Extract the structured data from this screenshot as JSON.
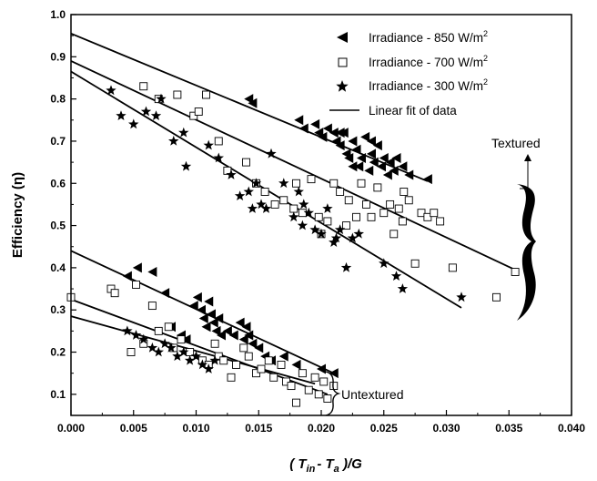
{
  "chart_data": {
    "type": "scatter",
    "xlabel": "( T_in - T_a )/G",
    "xlabel_parts": {
      "open": "( ",
      "t1": "T",
      "s1": "in",
      "dash": "- ",
      "t2": "T",
      "s2": "a",
      "close": " )/G"
    },
    "ylabel": "Efficiency (η)",
    "xlim": [
      0.0,
      0.04
    ],
    "ylim": [
      0.05,
      1.0
    ],
    "x_ticks": [
      0.0,
      0.005,
      0.01,
      0.015,
      0.02,
      0.025,
      0.03,
      0.035,
      0.04
    ],
    "x_tick_labels": [
      "0.000",
      "0.005",
      "0.010",
      "0.015",
      "0.020",
      "0.025",
      "0.030",
      "0.035",
      "0.040"
    ],
    "y_ticks": [
      0.1,
      0.2,
      0.3,
      0.4,
      0.5,
      0.6,
      0.7,
      0.8,
      0.9,
      1.0
    ],
    "y_tick_labels": [
      "0.1",
      "0.2",
      "0.3",
      "0.4",
      "0.5",
      "0.6",
      "0.7",
      "0.8",
      "0.9",
      "1.0"
    ],
    "legend_position": "top-right",
    "legend": [
      {
        "marker": "triangle-left",
        "label": "Irradiance - 850 W/m",
        "sup": "2"
      },
      {
        "marker": "square-open",
        "label": "Irradiance - 700 W/m",
        "sup": "2"
      },
      {
        "marker": "star",
        "label": "Irradiance - 300 W/m",
        "sup": "2"
      },
      {
        "marker": "line",
        "label": "Linear fit of data",
        "sup": ""
      }
    ],
    "annotations": {
      "textured": "Textured",
      "untextured": "Untextured"
    },
    "series": [
      {
        "name": "Irradiance - 850 W/m2 (Textured)",
        "marker": "triangle-left",
        "points": [
          [
            0.0142,
            0.8
          ],
          [
            0.0145,
            0.79
          ],
          [
            0.0182,
            0.75
          ],
          [
            0.0186,
            0.73
          ],
          [
            0.0195,
            0.74
          ],
          [
            0.0198,
            0.72
          ],
          [
            0.0201,
            0.71
          ],
          [
            0.0205,
            0.73
          ],
          [
            0.021,
            0.72
          ],
          [
            0.0212,
            0.7
          ],
          [
            0.0215,
            0.69
          ],
          [
            0.0218,
            0.72
          ],
          [
            0.022,
            0.67
          ],
          [
            0.0222,
            0.66
          ],
          [
            0.0225,
            0.7
          ],
          [
            0.0228,
            0.68
          ],
          [
            0.023,
            0.64
          ],
          [
            0.0232,
            0.66
          ],
          [
            0.0235,
            0.71
          ],
          [
            0.0238,
            0.63
          ],
          [
            0.024,
            0.67
          ],
          [
            0.0242,
            0.65
          ],
          [
            0.0245,
            0.69
          ],
          [
            0.0248,
            0.64
          ],
          [
            0.025,
            0.66
          ],
          [
            0.0253,
            0.62
          ],
          [
            0.0255,
            0.65
          ],
          [
            0.0258,
            0.63
          ],
          [
            0.026,
            0.66
          ],
          [
            0.0265,
            0.64
          ],
          [
            0.027,
            0.62
          ],
          [
            0.0285,
            0.61
          ],
          [
            0.0215,
            0.72
          ],
          [
            0.0225,
            0.64
          ],
          [
            0.024,
            0.7
          ]
        ]
      },
      {
        "name": "Irradiance - 700 W/m2 (Textured)",
        "marker": "square-open",
        "points": [
          [
            0.0058,
            0.83
          ],
          [
            0.007,
            0.8
          ],
          [
            0.0085,
            0.81
          ],
          [
            0.0098,
            0.76
          ],
          [
            0.0102,
            0.77
          ],
          [
            0.0108,
            0.81
          ],
          [
            0.0118,
            0.7
          ],
          [
            0.0125,
            0.63
          ],
          [
            0.014,
            0.65
          ],
          [
            0.0148,
            0.6
          ],
          [
            0.0155,
            0.58
          ],
          [
            0.0163,
            0.55
          ],
          [
            0.017,
            0.56
          ],
          [
            0.0178,
            0.54
          ],
          [
            0.0185,
            0.53
          ],
          [
            0.0192,
            0.61
          ],
          [
            0.0198,
            0.52
          ],
          [
            0.0205,
            0.51
          ],
          [
            0.021,
            0.6
          ],
          [
            0.0215,
            0.58
          ],
          [
            0.0222,
            0.56
          ],
          [
            0.0228,
            0.52
          ],
          [
            0.0232,
            0.6
          ],
          [
            0.0236,
            0.55
          ],
          [
            0.024,
            0.52
          ],
          [
            0.0245,
            0.59
          ],
          [
            0.025,
            0.53
          ],
          [
            0.0255,
            0.55
          ],
          [
            0.0258,
            0.48
          ],
          [
            0.0262,
            0.54
          ],
          [
            0.0266,
            0.58
          ],
          [
            0.027,
            0.56
          ],
          [
            0.0275,
            0.41
          ],
          [
            0.028,
            0.53
          ],
          [
            0.0285,
            0.52
          ],
          [
            0.029,
            0.53
          ],
          [
            0.0295,
            0.51
          ],
          [
            0.0305,
            0.4
          ],
          [
            0.034,
            0.33
          ],
          [
            0.0355,
            0.39
          ],
          [
            0.018,
            0.6
          ],
          [
            0.02,
            0.48
          ],
          [
            0.022,
            0.5
          ],
          [
            0.0265,
            0.51
          ]
        ]
      },
      {
        "name": "Irradiance - 300 W/m2 (Textured)",
        "marker": "star",
        "points": [
          [
            0.0032,
            0.82
          ],
          [
            0.004,
            0.76
          ],
          [
            0.005,
            0.74
          ],
          [
            0.006,
            0.77
          ],
          [
            0.0068,
            0.76
          ],
          [
            0.0072,
            0.8
          ],
          [
            0.0082,
            0.7
          ],
          [
            0.009,
            0.72
          ],
          [
            0.0092,
            0.64
          ],
          [
            0.011,
            0.69
          ],
          [
            0.0118,
            0.66
          ],
          [
            0.0128,
            0.62
          ],
          [
            0.0135,
            0.57
          ],
          [
            0.0142,
            0.58
          ],
          [
            0.0148,
            0.6
          ],
          [
            0.0152,
            0.55
          ],
          [
            0.0156,
            0.54
          ],
          [
            0.016,
            0.67
          ],
          [
            0.017,
            0.6
          ],
          [
            0.0178,
            0.52
          ],
          [
            0.0182,
            0.58
          ],
          [
            0.0186,
            0.55
          ],
          [
            0.019,
            0.53
          ],
          [
            0.0195,
            0.49
          ],
          [
            0.02,
            0.48
          ],
          [
            0.0205,
            0.54
          ],
          [
            0.021,
            0.46
          ],
          [
            0.0215,
            0.49
          ],
          [
            0.022,
            0.4
          ],
          [
            0.0225,
            0.47
          ],
          [
            0.023,
            0.48
          ],
          [
            0.025,
            0.41
          ],
          [
            0.026,
            0.38
          ],
          [
            0.0265,
            0.35
          ],
          [
            0.0312,
            0.33
          ],
          [
            0.0145,
            0.54
          ],
          [
            0.0185,
            0.5
          ],
          [
            0.0212,
            0.47
          ]
        ]
      },
      {
        "name": "Irradiance - 850 W/m2 (Untextured)",
        "marker": "triangle-left",
        "points": [
          [
            0.0045,
            0.38
          ],
          [
            0.0053,
            0.4
          ],
          [
            0.0065,
            0.39
          ],
          [
            0.0075,
            0.34
          ],
          [
            0.008,
            0.26
          ],
          [
            0.0088,
            0.24
          ],
          [
            0.0092,
            0.23
          ],
          [
            0.0098,
            0.31
          ],
          [
            0.0101,
            0.33
          ],
          [
            0.0104,
            0.3
          ],
          [
            0.0106,
            0.28
          ],
          [
            0.0108,
            0.26
          ],
          [
            0.011,
            0.32
          ],
          [
            0.0112,
            0.29
          ],
          [
            0.0114,
            0.27
          ],
          [
            0.0116,
            0.25
          ],
          [
            0.0118,
            0.28
          ],
          [
            0.012,
            0.24
          ],
          [
            0.0125,
            0.25
          ],
          [
            0.013,
            0.24
          ],
          [
            0.0135,
            0.27
          ],
          [
            0.0138,
            0.23
          ],
          [
            0.014,
            0.26
          ],
          [
            0.0142,
            0.24
          ],
          [
            0.0145,
            0.22
          ],
          [
            0.015,
            0.21
          ],
          [
            0.0155,
            0.19
          ],
          [
            0.016,
            0.18
          ],
          [
            0.017,
            0.19
          ],
          [
            0.018,
            0.17
          ],
          [
            0.02,
            0.16
          ],
          [
            0.021,
            0.15
          ]
        ]
      },
      {
        "name": "Irradiance - 700 W/m2 (Untextured)",
        "marker": "square-open",
        "points": [
          [
            0.0,
            0.33
          ],
          [
            0.0032,
            0.35
          ],
          [
            0.0035,
            0.34
          ],
          [
            0.0048,
            0.2
          ],
          [
            0.0052,
            0.36
          ],
          [
            0.0058,
            0.22
          ],
          [
            0.0065,
            0.31
          ],
          [
            0.007,
            0.25
          ],
          [
            0.0078,
            0.26
          ],
          [
            0.0082,
            0.21
          ],
          [
            0.0088,
            0.23
          ],
          [
            0.0095,
            0.2
          ],
          [
            0.0105,
            0.18
          ],
          [
            0.011,
            0.17
          ],
          [
            0.0115,
            0.22
          ],
          [
            0.0118,
            0.19
          ],
          [
            0.0122,
            0.18
          ],
          [
            0.0128,
            0.14
          ],
          [
            0.0132,
            0.17
          ],
          [
            0.0138,
            0.21
          ],
          [
            0.0142,
            0.19
          ],
          [
            0.0148,
            0.15
          ],
          [
            0.0152,
            0.16
          ],
          [
            0.0158,
            0.18
          ],
          [
            0.0162,
            0.14
          ],
          [
            0.0168,
            0.17
          ],
          [
            0.0172,
            0.13
          ],
          [
            0.0176,
            0.12
          ],
          [
            0.018,
            0.08
          ],
          [
            0.0185,
            0.15
          ],
          [
            0.019,
            0.11
          ],
          [
            0.0195,
            0.14
          ],
          [
            0.0198,
            0.1
          ],
          [
            0.0202,
            0.13
          ],
          [
            0.0205,
            0.09
          ],
          [
            0.021,
            0.12
          ]
        ]
      },
      {
        "name": "Irradiance - 300 W/m2 (Untextured)",
        "marker": "star",
        "points": [
          [
            0.0045,
            0.25
          ],
          [
            0.0052,
            0.24
          ],
          [
            0.0058,
            0.23
          ],
          [
            0.0065,
            0.21
          ],
          [
            0.007,
            0.2
          ],
          [
            0.0075,
            0.22
          ],
          [
            0.008,
            0.21
          ],
          [
            0.0085,
            0.19
          ],
          [
            0.009,
            0.2
          ],
          [
            0.0095,
            0.18
          ],
          [
            0.01,
            0.19
          ],
          [
            0.0105,
            0.17
          ],
          [
            0.011,
            0.16
          ],
          [
            0.0115,
            0.18
          ]
        ]
      }
    ],
    "fit_lines": [
      {
        "x": [
          0.0,
          0.0285
        ],
        "y": [
          0.955,
          0.605
        ]
      },
      {
        "x": [
          0.0,
          0.0355
        ],
        "y": [
          0.89,
          0.395
        ]
      },
      {
        "x": [
          0.0,
          0.0312
        ],
        "y": [
          0.865,
          0.305
        ]
      },
      {
        "x": [
          0.0,
          0.021
        ],
        "y": [
          0.44,
          0.15
        ]
      },
      {
        "x": [
          0.0,
          0.0205
        ],
        "y": [
          0.325,
          0.1
        ]
      },
      {
        "x": [
          0.0,
          0.0195
        ],
        "y": [
          0.285,
          0.125
        ]
      }
    ]
  }
}
